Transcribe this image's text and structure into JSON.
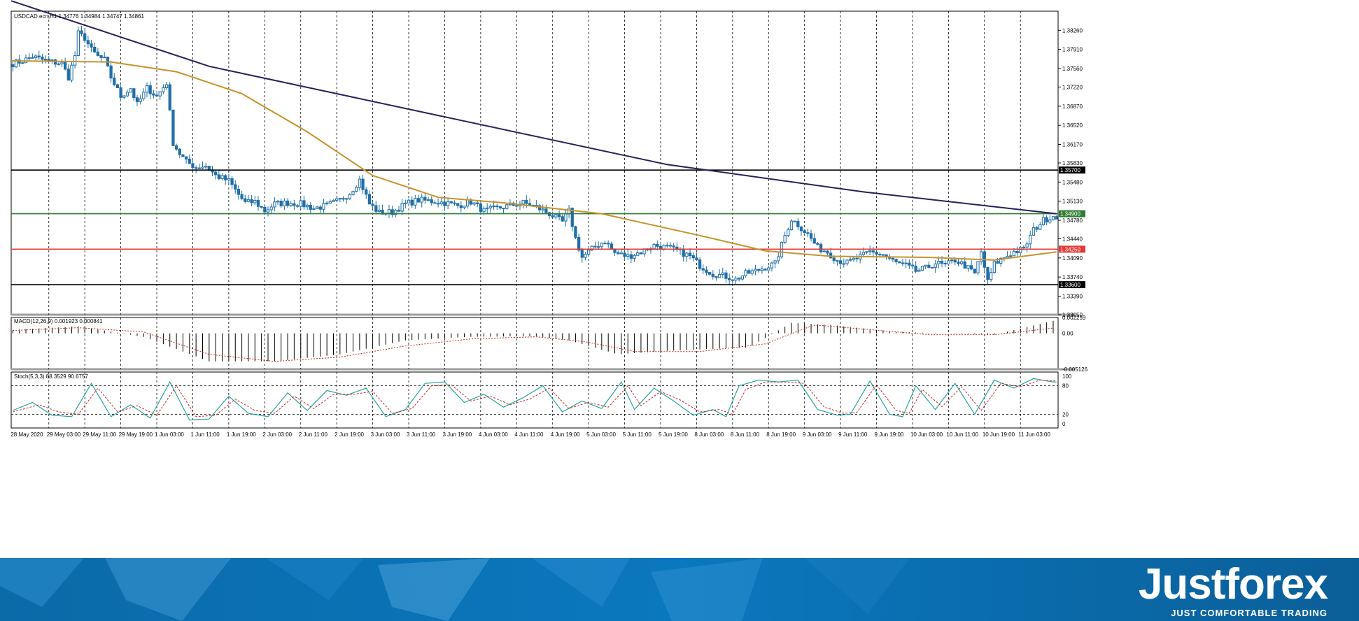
{
  "chart_data": [
    {
      "type": "candlestick",
      "title": "USDCAD.ecn,H1  1.34776 1.34984 1.34747 1.34861",
      "symbol": "USDCAD.ecn",
      "timeframe": "H1",
      "ohlc_header": {
        "open": 1.34776,
        "high": 1.34984,
        "low": 1.34747,
        "close": 1.34861
      },
      "ylim": [
        1.3305,
        1.3861
      ],
      "y_ticks": [
        "1.38260",
        "1.37910",
        "1.37560",
        "1.37220",
        "1.36870",
        "1.36520",
        "1.36170",
        "1.35830",
        "1.35480",
        "1.35130",
        "1.34780",
        "1.34440",
        "1.34090",
        "1.33740",
        "1.33390",
        "1.33050"
      ],
      "x_ticks": [
        "28 May 2020",
        "29 May 03:00",
        "29 May 11:00",
        "29 May 19:00",
        "1 Jun 03:00",
        "1 Jun 11:00",
        "1 Jun 19:00",
        "2 Jun 03:00",
        "2 Jun 11:00",
        "2 Jun 19:00",
        "3 Jun 03:00",
        "3 Jun 11:00",
        "3 Jun 19:00",
        "4 Jun 03:00",
        "4 Jun 11:00",
        "4 Jun 19:00",
        "5 Jun 03:00",
        "5 Jun 11:00",
        "5 Jun 19:00",
        "8 Jun 03:00",
        "8 Jun 11:00",
        "8 Jun 19:00",
        "9 Jun 03:00",
        "9 Jun 11:00",
        "9 Jun 19:00",
        "10 Jun 03:00",
        "10 Jun 11:00",
        "10 Jun 19:00",
        "11 Jun 03:00"
      ],
      "close_keypoints": [
        [
          0,
          1.3765
        ],
        [
          3,
          1.377
        ],
        [
          6,
          1.3778
        ],
        [
          9,
          1.3772
        ],
        [
          12,
          1.3768
        ],
        [
          15,
          1.3765
        ],
        [
          17,
          1.374
        ],
        [
          19,
          1.378
        ],
        [
          20,
          1.382
        ],
        [
          22,
          1.3812
        ],
        [
          24,
          1.379
        ],
        [
          26,
          1.3778
        ],
        [
          28,
          1.3772
        ],
        [
          30,
          1.374
        ],
        [
          33,
          1.3705
        ],
        [
          36,
          1.372
        ],
        [
          38,
          1.369
        ],
        [
          41,
          1.372
        ],
        [
          44,
          1.3705
        ],
        [
          47,
          1.373
        ],
        [
          49,
          1.362
        ],
        [
          51,
          1.36
        ],
        [
          53,
          1.3585
        ],
        [
          56,
          1.3575
        ],
        [
          59,
          1.3578
        ],
        [
          62,
          1.356
        ],
        [
          66,
          1.355
        ],
        [
          69,
          1.3525
        ],
        [
          71,
          1.351
        ],
        [
          74,
          1.3512
        ],
        [
          77,
          1.3495
        ],
        [
          80,
          1.3508
        ],
        [
          84,
          1.351
        ],
        [
          88,
          1.3508
        ],
        [
          92,
          1.35
        ],
        [
          96,
          1.3505
        ],
        [
          100,
          1.3515
        ],
        [
          103,
          1.3528
        ],
        [
          106,
          1.3552
        ],
        [
          109,
          1.3508
        ],
        [
          112,
          1.3492
        ],
        [
          116,
          1.3493
        ],
        [
          120,
          1.3508
        ],
        [
          124,
          1.3515
        ],
        [
          128,
          1.3513
        ],
        [
          132,
          1.351
        ],
        [
          136,
          1.3505
        ],
        [
          140,
          1.3512
        ],
        [
          144,
          1.3495
        ],
        [
          148,
          1.35
        ],
        [
          152,
          1.3505
        ],
        [
          156,
          1.351
        ],
        [
          160,
          1.3502
        ],
        [
          164,
          1.349
        ],
        [
          168,
          1.3475
        ],
        [
          170,
          1.3495
        ],
        [
          172,
          1.3445
        ],
        [
          174,
          1.341
        ],
        [
          176,
          1.342
        ],
        [
          178,
          1.343
        ],
        [
          181,
          1.344
        ],
        [
          184,
          1.3418
        ],
        [
          188,
          1.3412
        ],
        [
          192,
          1.342
        ],
        [
          196,
          1.3432
        ],
        [
          200,
          1.3428
        ],
        [
          204,
          1.342
        ],
        [
          207,
          1.3412
        ],
        [
          210,
          1.3395
        ],
        [
          214,
          1.338
        ],
        [
          218,
          1.3375
        ],
        [
          221,
          1.337
        ],
        [
          224,
          1.338
        ],
        [
          227,
          1.3385
        ],
        [
          230,
          1.3392
        ],
        [
          233,
          1.3398
        ],
        [
          236,
          1.345
        ],
        [
          238,
          1.348
        ],
        [
          240,
          1.347
        ],
        [
          243,
          1.3452
        ],
        [
          246,
          1.3428
        ],
        [
          249,
          1.342
        ],
        [
          252,
          1.3405
        ],
        [
          255,
          1.34
        ],
        [
          258,
          1.3408
        ],
        [
          262,
          1.342
        ],
        [
          266,
          1.3415
        ],
        [
          270,
          1.34
        ],
        [
          273,
          1.3395
        ],
        [
          276,
          1.3385
        ],
        [
          279,
          1.339
        ],
        [
          282,
          1.34
        ],
        [
          285,
          1.3395
        ],
        [
          288,
          1.3405
        ],
        [
          291,
          1.3395
        ],
        [
          294,
          1.338
        ],
        [
          296,
          1.342
        ],
        [
          298,
          1.3365
        ],
        [
          300,
          1.3398
        ],
        [
          303,
          1.341
        ],
        [
          306,
          1.342
        ],
        [
          309,
          1.3425
        ],
        [
          312,
          1.346
        ],
        [
          315,
          1.3478
        ],
        [
          318,
          1.3486
        ]
      ],
      "series": [
        {
          "name": "",
          "kind": "moving-average",
          "color": "#2b1f5c",
          "values": [
            [
              -20,
              1.388
            ],
            [
              60,
              1.376
            ],
            [
              130,
              1.367
            ],
            [
              200,
              1.358
            ],
            [
              260,
              1.353
            ],
            [
              319,
              1.349
            ]
          ]
        },
        {
          "name": "",
          "kind": "moving-average",
          "color": "#c8922a",
          "values": [
            [
              -20,
              1.377
            ],
            [
              30,
              1.3768
            ],
            [
              50,
              1.375
            ],
            [
              70,
              1.371
            ],
            [
              90,
              1.364
            ],
            [
              110,
              1.356
            ],
            [
              130,
              1.352
            ],
            [
              150,
              1.351
            ],
            [
              180,
              1.349
            ],
            [
              210,
              1.345
            ],
            [
              230,
              1.3422
            ],
            [
              250,
              1.3412
            ],
            [
              280,
              1.341
            ],
            [
              300,
              1.3405
            ],
            [
              319,
              1.342
            ]
          ]
        }
      ],
      "levels": [
        {
          "value": 1.357,
          "label": "1.35700",
          "color": "#000000"
        },
        {
          "value": 1.349,
          "label": "1.34900",
          "color": "#2e7d32"
        },
        {
          "value": 1.3425,
          "label": "1.34250",
          "color": "#e53935"
        },
        {
          "value": 1.336,
          "label": "1.33600",
          "color": "#000000"
        }
      ],
      "candle_up_color": "#1f6ea8",
      "candle_down_color": "#1f6ea8",
      "grid": true
    },
    {
      "type": "histogram",
      "title": "MACD(12,26,9) 0.001923 0.000841",
      "ylim": [
        -0.005126,
        0.002259
      ],
      "y_ticks": [
        "0.002259",
        "0.00",
        "-0.005126"
      ],
      "macd_keypoints": [
        [
          0,
          0.0005
        ],
        [
          20,
          0.001
        ],
        [
          40,
          -0.0005
        ],
        [
          60,
          -0.004
        ],
        [
          80,
          -0.004
        ],
        [
          100,
          -0.003
        ],
        [
          120,
          -0.001
        ],
        [
          140,
          -0.0005
        ],
        [
          160,
          -0.0004
        ],
        [
          170,
          -0.001
        ],
        [
          185,
          -0.003
        ],
        [
          200,
          -0.0025
        ],
        [
          225,
          -0.002
        ],
        [
          238,
          0.0015
        ],
        [
          250,
          0.0012
        ],
        [
          270,
          0.0002
        ],
        [
          300,
          -0.0002
        ],
        [
          319,
          0.0019
        ]
      ],
      "signal_keypoints": [
        [
          0,
          0.0004
        ],
        [
          20,
          0.0008
        ],
        [
          40,
          0.0002
        ],
        [
          60,
          -0.003
        ],
        [
          80,
          -0.004
        ],
        [
          100,
          -0.0034
        ],
        [
          120,
          -0.0018
        ],
        [
          140,
          -0.0008
        ],
        [
          160,
          -0.0005
        ],
        [
          175,
          -0.0012
        ],
        [
          190,
          -0.0026
        ],
        [
          210,
          -0.0026
        ],
        [
          230,
          -0.0015
        ],
        [
          245,
          0.0012
        ],
        [
          260,
          0.0006
        ],
        [
          280,
          -0.0002
        ],
        [
          300,
          -0.0002
        ],
        [
          319,
          0.0008
        ]
      ],
      "bar_color": "#000000",
      "signal_color": "#c62828"
    },
    {
      "type": "line",
      "title": "Stoch(5,3,3) 88.3529 90.6757",
      "ylim": [
        0,
        100
      ],
      "y_ticks": [
        "100",
        "80",
        "20",
        "0"
      ],
      "main_keypoints": [
        [
          0,
          28
        ],
        [
          6,
          45
        ],
        [
          12,
          18
        ],
        [
          18,
          15
        ],
        [
          24,
          85
        ],
        [
          30,
          15
        ],
        [
          36,
          40
        ],
        [
          42,
          12
        ],
        [
          48,
          88
        ],
        [
          54,
          8
        ],
        [
          60,
          10
        ],
        [
          66,
          58
        ],
        [
          72,
          22
        ],
        [
          78,
          15
        ],
        [
          84,
          65
        ],
        [
          90,
          28
        ],
        [
          96,
          70
        ],
        [
          102,
          60
        ],
        [
          108,
          75
        ],
        [
          114,
          15
        ],
        [
          120,
          30
        ],
        [
          126,
          85
        ],
        [
          132,
          88
        ],
        [
          138,
          45
        ],
        [
          144,
          62
        ],
        [
          150,
          35
        ],
        [
          156,
          55
        ],
        [
          162,
          80
        ],
        [
          168,
          25
        ],
        [
          174,
          48
        ],
        [
          180,
          32
        ],
        [
          186,
          88
        ],
        [
          190,
          30
        ],
        [
          196,
          75
        ],
        [
          202,
          48
        ],
        [
          208,
          18
        ],
        [
          214,
          30
        ],
        [
          218,
          15
        ],
        [
          222,
          80
        ],
        [
          228,
          92
        ],
        [
          234,
          88
        ],
        [
          240,
          92
        ],
        [
          246,
          30
        ],
        [
          252,
          18
        ],
        [
          256,
          20
        ],
        [
          262,
          90
        ],
        [
          268,
          20
        ],
        [
          272,
          15
        ],
        [
          276,
          80
        ],
        [
          282,
          30
        ],
        [
          288,
          85
        ],
        [
          294,
          20
        ],
        [
          300,
          92
        ],
        [
          306,
          75
        ],
        [
          312,
          95
        ],
        [
          318,
          88
        ]
      ],
      "signal_keypoints": [
        [
          0,
          25
        ],
        [
          8,
          40
        ],
        [
          14,
          25
        ],
        [
          20,
          20
        ],
        [
          26,
          75
        ],
        [
          32,
          25
        ],
        [
          38,
          38
        ],
        [
          44,
          18
        ],
        [
          50,
          80
        ],
        [
          56,
          15
        ],
        [
          62,
          18
        ],
        [
          68,
          52
        ],
        [
          74,
          28
        ],
        [
          80,
          22
        ],
        [
          86,
          58
        ],
        [
          92,
          32
        ],
        [
          98,
          62
        ],
        [
          104,
          62
        ],
        [
          110,
          68
        ],
        [
          116,
          22
        ],
        [
          122,
          32
        ],
        [
          128,
          80
        ],
        [
          134,
          82
        ],
        [
          140,
          48
        ],
        [
          146,
          58
        ],
        [
          152,
          40
        ],
        [
          158,
          52
        ],
        [
          164,
          75
        ],
        [
          170,
          32
        ],
        [
          176,
          45
        ],
        [
          182,
          35
        ],
        [
          188,
          80
        ],
        [
          192,
          38
        ],
        [
          198,
          68
        ],
        [
          204,
          50
        ],
        [
          210,
          25
        ],
        [
          216,
          30
        ],
        [
          220,
          20
        ],
        [
          224,
          72
        ],
        [
          230,
          88
        ],
        [
          236,
          88
        ],
        [
          242,
          85
        ],
        [
          248,
          35
        ],
        [
          254,
          22
        ],
        [
          258,
          24
        ],
        [
          264,
          82
        ],
        [
          270,
          28
        ],
        [
          274,
          22
        ],
        [
          278,
          72
        ],
        [
          284,
          36
        ],
        [
          290,
          78
        ],
        [
          296,
          28
        ],
        [
          302,
          85
        ],
        [
          308,
          78
        ],
        [
          314,
          92
        ],
        [
          318,
          90
        ]
      ],
      "main_color": "#26a69a",
      "signal_color": "#c62828"
    }
  ],
  "brand": {
    "name": "Justforex",
    "tagline": "JUST COMFORTABLE TRADING",
    "banner_color": "#0a6fb3"
  }
}
